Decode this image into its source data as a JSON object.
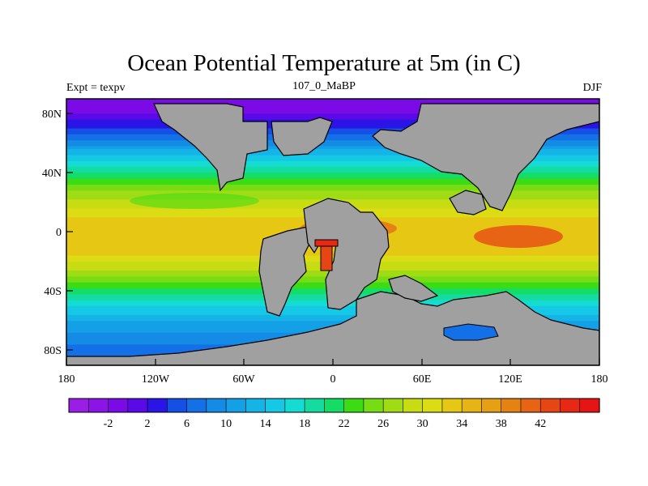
{
  "title": "Ocean Potential Temperature at 5m (in C)",
  "left_label": "Expt = texpv",
  "center_label": "107_0_MaBP",
  "right_label": "DJF",
  "lat_ticks": [
    "80N",
    "40N",
    "0",
    "40S",
    "80S"
  ],
  "lon_ticks": [
    "180",
    "120W",
    "60W",
    "0",
    "60E",
    "120E",
    "180"
  ],
  "colorbar": {
    "labels": [
      "-2",
      "2",
      "6",
      "10",
      "14",
      "18",
      "22",
      "26",
      "30",
      "34",
      "38",
      "42"
    ],
    "colors": [
      "#9a1ee6",
      "#8c14e6",
      "#7a0ae6",
      "#5a0ae6",
      "#2a14e6",
      "#1450e6",
      "#1470e6",
      "#148ce6",
      "#14a0e6",
      "#14b4e6",
      "#14c8e6",
      "#14dcd2",
      "#14dca0",
      "#14dc64",
      "#3cdc14",
      "#78dc14",
      "#a0dc14",
      "#c8dc14",
      "#dcdc14",
      "#e6c814",
      "#e6b414",
      "#e6a014",
      "#e68214",
      "#e66414",
      "#e64614",
      "#e62814",
      "#e61414"
    ]
  },
  "colors": {
    "land": "#a0a0a0",
    "frame": "#000000"
  },
  "chart_data": {
    "type": "heatmap",
    "title": "Ocean Potential Temperature at 5m (in C)",
    "subtitle": "107_0_MaBP",
    "experiment": "Expt = texpv",
    "season": "DJF",
    "variable_units": "C",
    "x_range": [
      -180,
      180
    ],
    "y_range": [
      -90,
      90
    ],
    "color_levels": [
      -2,
      2,
      6,
      10,
      14,
      18,
      22,
      26,
      30,
      34,
      38,
      42
    ],
    "zonal_profile": [
      {
        "lat": 85,
        "temp": -2
      },
      {
        "lat": 70,
        "temp": 4
      },
      {
        "lat": 55,
        "temp": 12
      },
      {
        "lat": 40,
        "temp": 20
      },
      {
        "lat": 25,
        "temp": 27
      },
      {
        "lat": 10,
        "temp": 32
      },
      {
        "lat": 0,
        "temp": 33
      },
      {
        "lat": -15,
        "temp": 32
      },
      {
        "lat": -30,
        "temp": 26
      },
      {
        "lat": -45,
        "temp": 18
      },
      {
        "lat": -60,
        "temp": 12
      },
      {
        "lat": -75,
        "temp": 8
      },
      {
        "lat": -85,
        "temp": 6
      }
    ],
    "hotspots": [
      {
        "lon": 105,
        "lat": 0,
        "temp": 38
      },
      {
        "lon": -5,
        "lat": -5,
        "temp": 42
      }
    ]
  }
}
